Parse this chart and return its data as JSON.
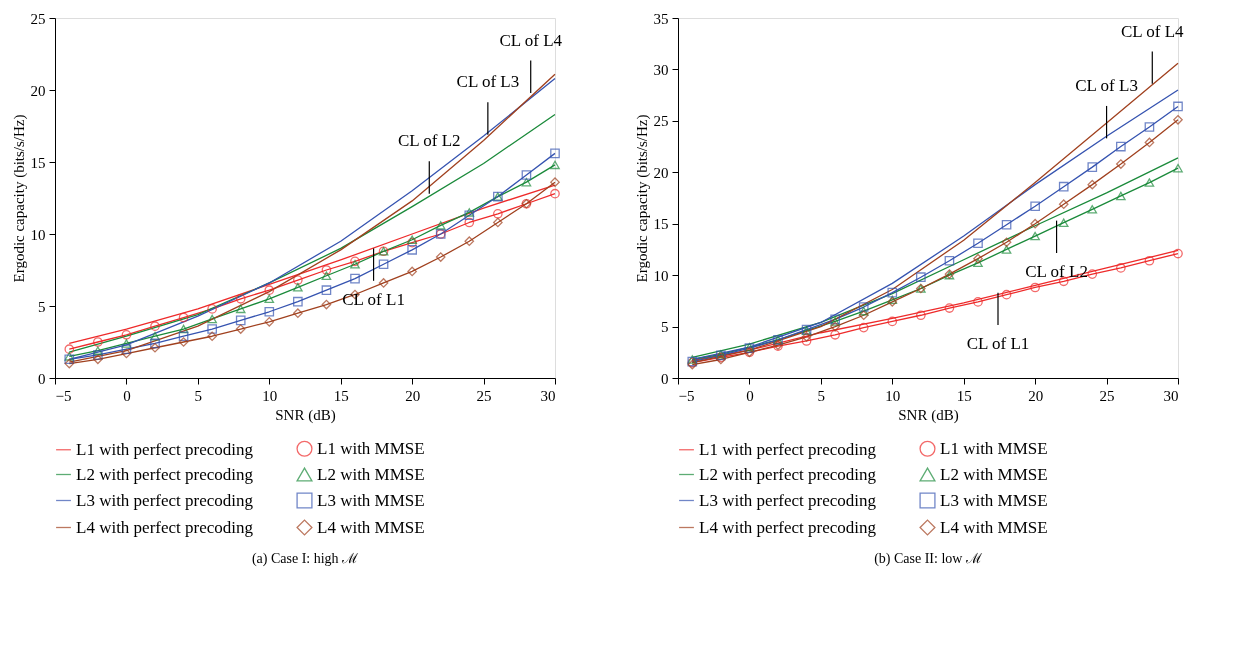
{
  "chart_data": [
    {
      "type": "line",
      "title": "(a) Case I: high ℳ",
      "xlabel": "SNR (dB)",
      "ylabel": "Ergodic capacity (bits/s/Hz)",
      "xlim": [
        -5,
        30
      ],
      "xticks": [
        -5,
        0,
        5,
        10,
        15,
        20,
        25,
        30
      ],
      "ylim": [
        0,
        25
      ],
      "yticks": [
        0,
        5,
        10,
        15,
        20,
        25
      ],
      "grid": false,
      "legend": "bottom",
      "line_style": "solid",
      "series": [
        {
          "name": "L1 with perfect precoding",
          "color": "#ee2a2a",
          "marker": "none",
          "x": [
            -4,
            0,
            5,
            10,
            15,
            20,
            25,
            30
          ],
          "values": [
            2.4,
            3.4,
            4.8,
            6.5,
            8.2,
            10.0,
            11.8,
            13.4
          ]
        },
        {
          "name": "L1 with MMSE",
          "color": "#ee2a2a",
          "marker": "circle",
          "x": [
            -4,
            -2,
            0,
            2,
            4,
            6,
            8,
            10,
            12,
            14,
            16,
            18,
            20,
            22,
            24,
            26,
            28,
            30
          ],
          "values": [
            2.0,
            2.5,
            3.0,
            3.6,
            4.2,
            4.8,
            5.5,
            6.1,
            6.8,
            7.5,
            8.1,
            8.8,
            9.4,
            10.0,
            10.8,
            11.4,
            12.1,
            12.8
          ]
        },
        {
          "name": "L2 with perfect precoding",
          "color": "#1a8a3a",
          "marker": "none",
          "x": [
            -4,
            0,
            5,
            10,
            15,
            20,
            25,
            30
          ],
          "values": [
            1.8,
            2.9,
            4.4,
            6.6,
            9.0,
            11.9,
            14.9,
            18.3
          ]
        },
        {
          "name": "L2 with MMSE",
          "color": "#1a8a3a",
          "marker": "triangle",
          "x": [
            -4,
            -2,
            0,
            2,
            4,
            6,
            8,
            10,
            12,
            14,
            16,
            18,
            20,
            22,
            24,
            26,
            28,
            30
          ],
          "values": [
            1.5,
            1.9,
            2.4,
            2.9,
            3.4,
            4.1,
            4.8,
            5.5,
            6.3,
            7.1,
            7.9,
            8.8,
            9.6,
            10.6,
            11.5,
            12.6,
            13.6,
            14.8
          ]
        },
        {
          "name": "L3 with perfect precoding",
          "color": "#3553b0",
          "marker": "none",
          "x": [
            -4,
            0,
            5,
            10,
            15,
            20,
            25,
            30
          ],
          "values": [
            1.3,
            2.3,
            4.3,
            6.6,
            9.5,
            13.0,
            16.8,
            20.8
          ]
        },
        {
          "name": "L3 with MMSE",
          "color": "#3553b0",
          "marker": "square",
          "x": [
            -4,
            -2,
            0,
            2,
            4,
            6,
            8,
            10,
            12,
            14,
            16,
            18,
            20,
            22,
            24,
            26,
            28,
            30
          ],
          "values": [
            1.3,
            1.6,
            2.0,
            2.4,
            2.9,
            3.4,
            4.0,
            4.6,
            5.3,
            6.1,
            6.9,
            7.9,
            8.9,
            10.0,
            11.3,
            12.6,
            14.1,
            15.6
          ]
        },
        {
          "name": "L4 with perfect precoding",
          "color": "#a0401e",
          "marker": "none",
          "x": [
            -4,
            0,
            5,
            10,
            15,
            20,
            25,
            30
          ],
          "values": [
            1.1,
            1.9,
            3.6,
            6.0,
            8.9,
            12.3,
            16.5,
            21.1
          ]
        },
        {
          "name": "L4 with MMSE",
          "color": "#a0401e",
          "marker": "diamond",
          "x": [
            -4,
            -2,
            0,
            2,
            4,
            6,
            8,
            10,
            12,
            14,
            16,
            18,
            20,
            22,
            24,
            26,
            28,
            30
          ],
          "values": [
            1.0,
            1.3,
            1.7,
            2.1,
            2.5,
            2.9,
            3.4,
            3.9,
            4.5,
            5.1,
            5.8,
            6.6,
            7.4,
            8.4,
            9.5,
            10.8,
            12.1,
            13.6
          ]
        }
      ],
      "annotations": [
        {
          "text": "CL of L4",
          "x": 28.3,
          "y": 19.8
        },
        {
          "text": "CL of L3",
          "x": 25.3,
          "y": 16.9
        },
        {
          "text": "CL of L2",
          "x": 21.2,
          "y": 12.8
        },
        {
          "text": "CL of L1",
          "x": 17.3,
          "y": 9.0
        }
      ]
    },
    {
      "type": "line",
      "title": "(b) Case II: low ℳ",
      "xlabel": "SNR (dB)",
      "ylabel": "Ergodic capacity (bits/s/Hz)",
      "xlim": [
        -5,
        30
      ],
      "xticks": [
        -5,
        0,
        5,
        10,
        15,
        20,
        25,
        30
      ],
      "ylim": [
        0,
        35
      ],
      "yticks": [
        0,
        5,
        10,
        15,
        20,
        25,
        30,
        35
      ],
      "grid": false,
      "legend": "bottom",
      "line_style": "solid",
      "series": [
        {
          "name": "L1 with perfect precoding",
          "color": "#ee2a2a",
          "marker": "none",
          "x": [
            -4,
            0,
            5,
            10,
            15,
            20,
            25,
            30
          ],
          "values": [
            1.7,
            2.7,
            4.4,
            5.8,
            7.3,
            9.0,
            10.7,
            12.4
          ]
        },
        {
          "name": "L1 with MMSE",
          "color": "#ee2a2a",
          "marker": "circle",
          "x": [
            -4,
            -2,
            0,
            2,
            4,
            6,
            8,
            10,
            12,
            14,
            16,
            18,
            20,
            22,
            24,
            26,
            28,
            30
          ],
          "values": [
            1.5,
            2.0,
            2.5,
            3.1,
            3.6,
            4.2,
            4.9,
            5.5,
            6.1,
            6.8,
            7.4,
            8.1,
            8.8,
            9.4,
            10.1,
            10.7,
            11.4,
            12.1
          ]
        },
        {
          "name": "L2 with perfect precoding",
          "color": "#1a8a3a",
          "marker": "none",
          "x": [
            -4,
            0,
            5,
            10,
            15,
            20,
            25,
            30
          ],
          "values": [
            2.0,
            3.3,
            5.4,
            8.2,
            11.5,
            14.8,
            18.0,
            21.4
          ]
        },
        {
          "name": "L2 with MMSE",
          "color": "#1a8a3a",
          "marker": "triangle",
          "x": [
            -4,
            -2,
            0,
            2,
            4,
            6,
            8,
            10,
            12,
            14,
            16,
            18,
            20,
            22,
            24,
            26,
            28,
            30
          ],
          "values": [
            1.8,
            2.3,
            3.0,
            3.7,
            4.6,
            5.5,
            6.5,
            7.6,
            8.7,
            10.0,
            11.2,
            12.5,
            13.8,
            15.1,
            16.4,
            17.7,
            19.0,
            20.4
          ]
        },
        {
          "name": "L3 with perfect precoding",
          "color": "#3553b0",
          "marker": "none",
          "x": [
            -4,
            0,
            5,
            10,
            15,
            20,
            25,
            30
          ],
          "values": [
            1.8,
            3.0,
            5.4,
            9.2,
            13.8,
            18.8,
            23.5,
            28.0
          ]
        },
        {
          "name": "L3 with MMSE",
          "color": "#3553b0",
          "marker": "square",
          "x": [
            -4,
            -2,
            0,
            2,
            4,
            6,
            8,
            10,
            12,
            14,
            16,
            18,
            20,
            22,
            24,
            26,
            28,
            30
          ],
          "values": [
            1.6,
            2.2,
            2.9,
            3.7,
            4.7,
            5.7,
            6.9,
            8.3,
            9.8,
            11.4,
            13.1,
            14.9,
            16.7,
            18.6,
            20.5,
            22.5,
            24.4,
            26.4
          ]
        },
        {
          "name": "L4 with perfect precoding",
          "color": "#a0401e",
          "marker": "none",
          "x": [
            -4,
            0,
            5,
            10,
            15,
            20,
            25,
            30
          ],
          "values": [
            1.5,
            2.7,
            5.0,
            8.6,
            13.4,
            19.0,
            24.8,
            30.6
          ]
        },
        {
          "name": "L4 with MMSE",
          "color": "#a0401e",
          "marker": "diamond",
          "x": [
            -4,
            -2,
            0,
            2,
            4,
            6,
            8,
            10,
            12,
            14,
            16,
            18,
            20,
            22,
            24,
            26,
            28,
            30
          ],
          "values": [
            1.3,
            1.8,
            2.5,
            3.2,
            4.0,
            5.0,
            6.1,
            7.4,
            8.7,
            10.1,
            11.6,
            13.2,
            15.0,
            16.9,
            18.8,
            20.8,
            22.9,
            25.1
          ]
        }
      ],
      "annotations": [
        {
          "text": "CL of L4",
          "x": 28.2,
          "y": 28.6
        },
        {
          "text": "CL of L3",
          "x": 25.0,
          "y": 23.3
        },
        {
          "text": "CL of L2",
          "x": 21.5,
          "y": 15.3
        },
        {
          "text": "CL of L1",
          "x": 17.4,
          "y": 8.3
        }
      ]
    }
  ]
}
